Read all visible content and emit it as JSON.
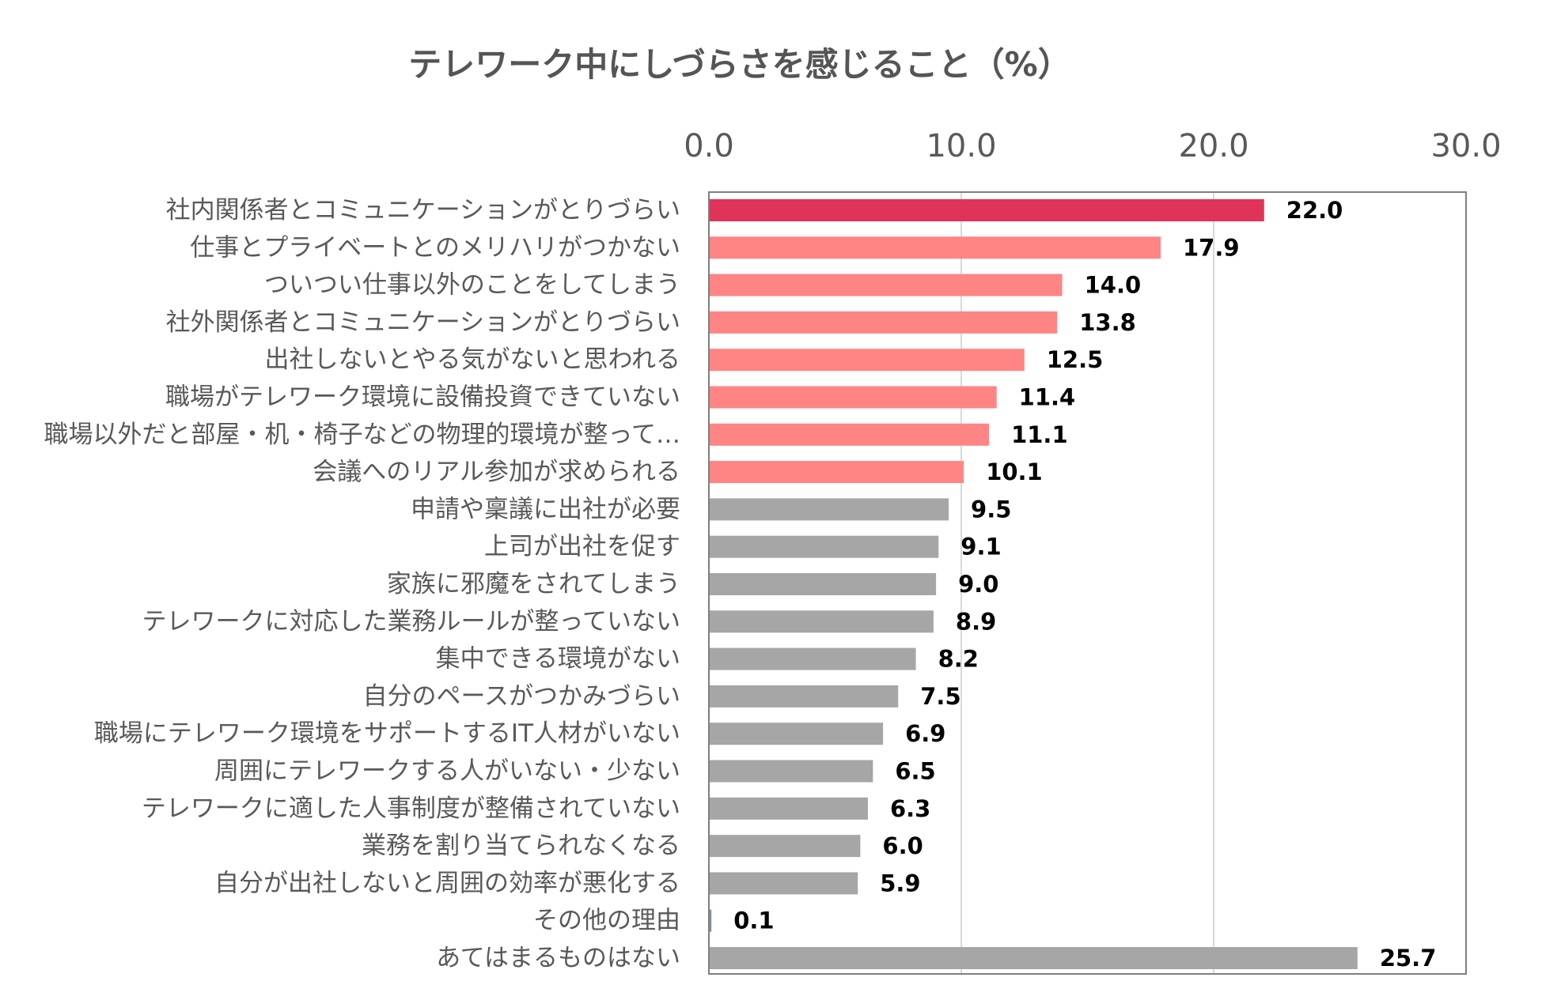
{
  "colors": {
    "highlight": "#e0335a",
    "emphasis": "#ff8585",
    "neutral": "#a6a6a6",
    "other": "#7f8fa6"
  },
  "chart_data": {
    "type": "bar",
    "orientation": "horizontal",
    "title": "テレワーク中にしづらさを感じること（%）",
    "xlabel": "",
    "ylabel": "",
    "xlim": [
      0,
      30
    ],
    "ticks": [
      0,
      10,
      20,
      30
    ],
    "tick_labels": [
      "0.0",
      "10.0",
      "20.0",
      "30.0"
    ],
    "grid": true,
    "axis_position": "top",
    "legend": "none",
    "categories": [
      "社内関係者とコミュニケーションがとりづらい",
      "仕事とプライベートとのメリハリがつかない",
      "ついつい仕事以外のことをしてしまう",
      "社外関係者とコミュニケーションがとりづらい",
      "出社しないとやる気がないと思われる",
      "職場がテレワーク環境に設備投資できていない",
      "職場以外だと部屋・机・椅子などの物理的環境が整って…",
      "会議へのリアル参加が求められる",
      "申請や稟議に出社が必要",
      "上司が出社を促す",
      "家族に邪魔をされてしまう",
      "テレワークに対応した業務ルールが整っていない",
      "集中できる環境がない",
      "自分のペースがつかみづらい",
      "職場にテレワーク環境をサポートするIT人材がいない",
      "周囲にテレワークする人がいない・少ない",
      "テレワークに適した人事制度が整備されていない",
      "業務を割り当てられなくなる",
      "自分が出社しないと周囲の効率が悪化する",
      "その他の理由",
      "あてはまるものはない"
    ],
    "values": [
      22.0,
      17.9,
      14.0,
      13.8,
      12.5,
      11.4,
      11.1,
      10.1,
      9.5,
      9.1,
      9.0,
      8.9,
      8.2,
      7.5,
      6.9,
      6.5,
      6.3,
      6.0,
      5.9,
      0.1,
      25.7
    ],
    "value_labels": [
      "22.0",
      "17.9",
      "14.0",
      "13.8",
      "12.5",
      "11.4",
      "11.1",
      "10.1",
      "9.5",
      "9.1",
      "9.0",
      "8.9",
      "8.2",
      "7.5",
      "6.9",
      "6.5",
      "6.3",
      "6.0",
      "5.9",
      "0.1",
      "25.7"
    ],
    "bar_groups": [
      "highlight",
      "emphasis",
      "emphasis",
      "emphasis",
      "emphasis",
      "emphasis",
      "emphasis",
      "emphasis",
      "neutral",
      "neutral",
      "neutral",
      "neutral",
      "neutral",
      "neutral",
      "neutral",
      "neutral",
      "neutral",
      "neutral",
      "neutral",
      "other",
      "neutral"
    ]
  }
}
